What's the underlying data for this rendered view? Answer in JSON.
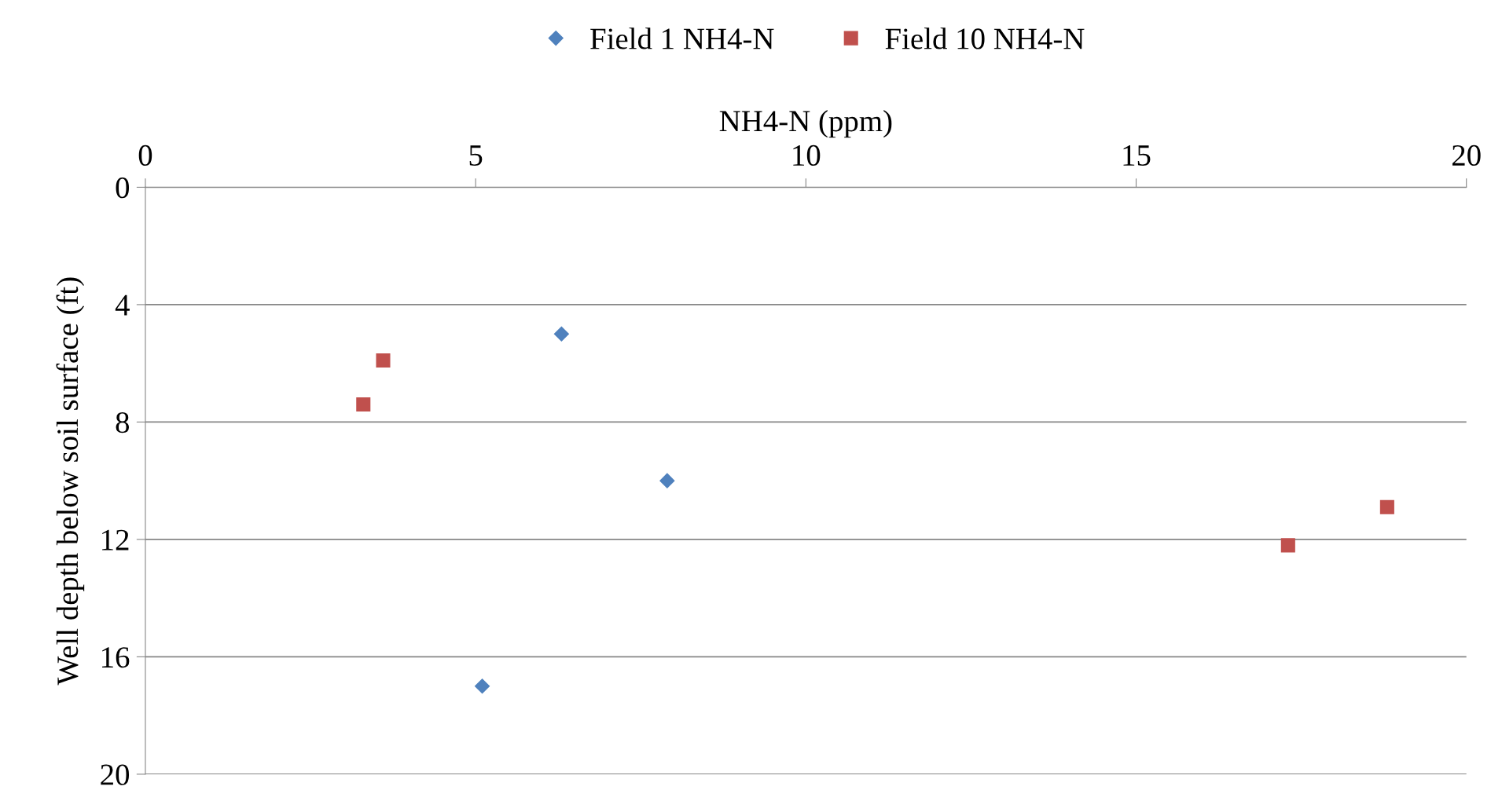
{
  "chart_data": {
    "type": "scatter",
    "xlabel": "NH4-N (ppm)",
    "ylabel": "Well depth below soil surface (ft)",
    "xlim": [
      0,
      20
    ],
    "xticks": [
      0,
      5,
      10,
      15,
      20
    ],
    "ylim": [
      20,
      0
    ],
    "yticks": [
      0,
      4,
      8,
      12,
      16,
      20
    ],
    "grid": "y",
    "legend": "top",
    "series": [
      {
        "name": "Field 1 NH4-N",
        "color": "#4f81bd",
        "marker": "diamond",
        "x": [
          6.3,
          7.9,
          5.1
        ],
        "values": [
          5.0,
          10.0,
          17.0
        ]
      },
      {
        "name": "Field 10 NH4-N",
        "color": "#c0504d",
        "marker": "square",
        "x": [
          3.6,
          3.3,
          17.3,
          18.8
        ],
        "values": [
          5.9,
          7.4,
          12.2,
          10.9
        ]
      }
    ]
  }
}
